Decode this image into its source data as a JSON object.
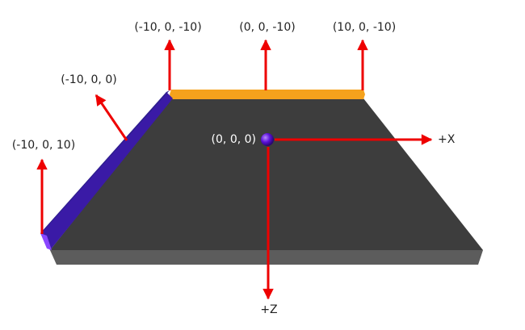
{
  "colors": {
    "background": "#ffffff",
    "plane_top": "#3d3d3d",
    "plane_front": "#5c5c5c",
    "left_edge_top": "#2e1e8e",
    "left_edge_face": "#4b18c8",
    "left_edge_highlight": "#8a46ff",
    "back_edge": "#f5a21c",
    "arrow": "#ee0000",
    "origin_point": "#5a10d8",
    "label_dark": "#222222",
    "label_light": "#ffffff"
  },
  "labels": {
    "back_left": "(-10, 0, -10)",
    "back_center": "(0, 0, -10)",
    "back_right": "(10, 0, -10)",
    "left_middle": "(-10, 0, 0)",
    "front_left": "(-10, 0, 10)",
    "origin": "(0, 0, 0)",
    "axis_x": "+X",
    "axis_z": "+Z"
  }
}
